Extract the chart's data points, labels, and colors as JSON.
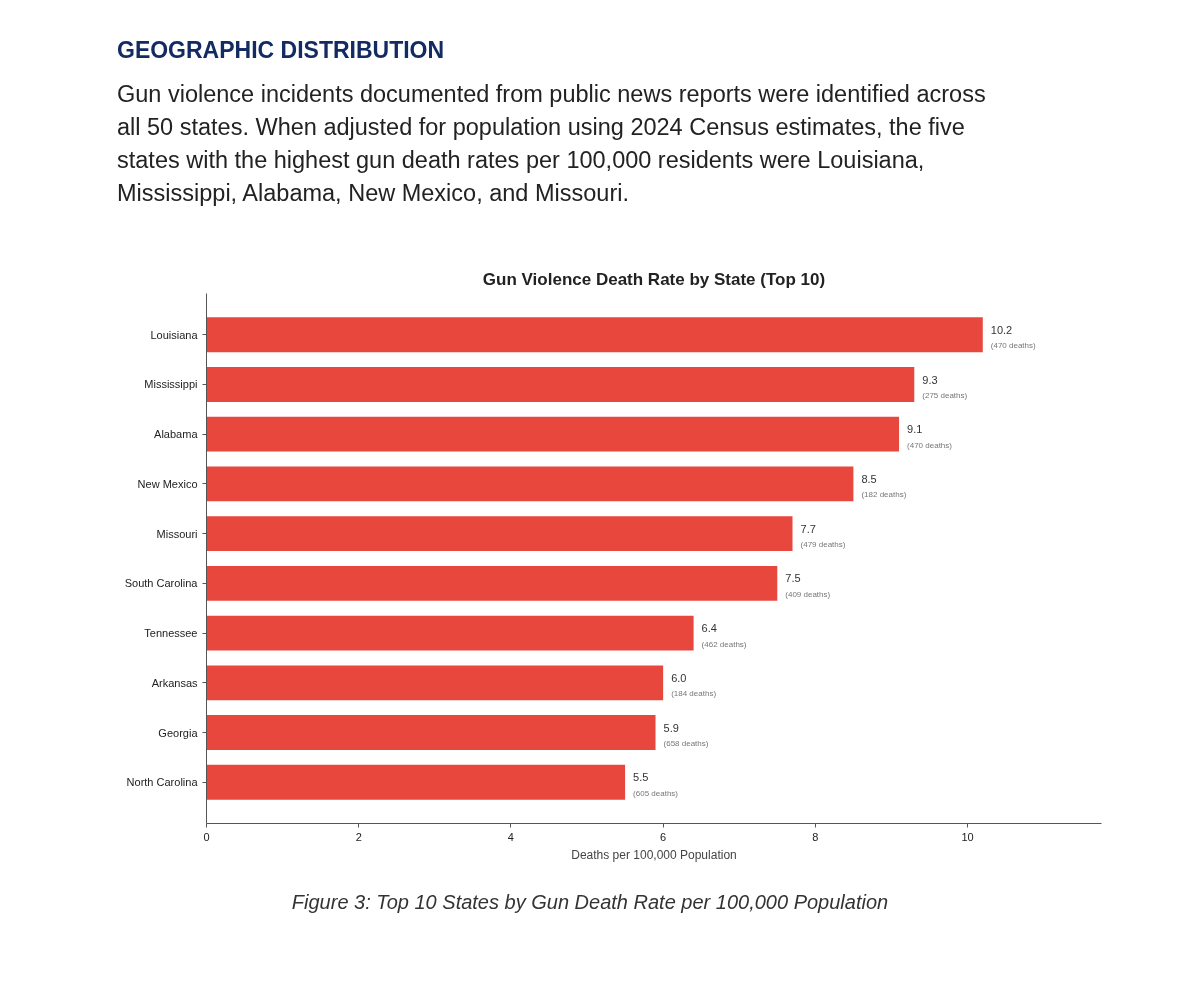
{
  "chart_data": {
    "type": "bar",
    "orientation": "horizontal",
    "title": "Gun Violence Death Rate by State (Top 10)",
    "xlabel": "Deaths per 100,000 Population",
    "categories": [
      "Louisiana",
      "Mississippi",
      "Alabama",
      "New Mexico",
      "Missouri",
      "South Carolina",
      "Tennessee",
      "Arkansas",
      "Georgia",
      "North Carolina"
    ],
    "values": [
      10.2,
      9.3,
      9.1,
      8.5,
      7.7,
      7.5,
      6.4,
      6.0,
      5.9,
      5.5
    ],
    "value_labels": [
      "10.2\n(470 deaths)",
      "9.3\n(275 deaths)",
      "9.1\n(470 deaths)",
      "8.5\n(182 deaths)",
      "7.7\n(479 deaths)",
      "7.5\n(409 deaths)",
      "6.4\n(462 deaths)",
      "6.0\n(184 deaths)",
      "5.9\n(658 deaths)",
      "5.5\n(605 deaths)"
    ],
    "color": "#e8473d",
    "xlim": [
      0,
      11.76
    ],
    "xticks": [
      0,
      2,
      4,
      6,
      8,
      10
    ],
    "grid": false,
    "annotations": [
      "GEOGRAPHIC DISTRIBUTION",
      "Gun violence incidents documented from public news reports were identified across all 50 states. When adjusted for population using 2024 Census estimates, the five states with the highest gun death rates per 100,000 residents were Louisiana, Mississippi, Alabama, New Mexico, and Missouri.",
      "Figure 3: Top 10 States by Gun Death Rate per 100,000 Population"
    ]
  }
}
